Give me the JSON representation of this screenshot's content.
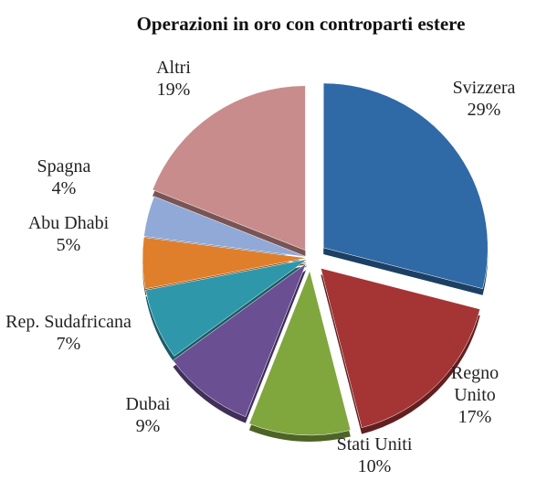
{
  "chart_data": {
    "type": "pie",
    "title": "Operazioni in oro con controparti estere",
    "categories": [
      "Svizzera",
      "Regno Unito",
      "Stati Uniti",
      "Dubai",
      "Rep. Sudafricana",
      "Abu Dhabi",
      "Spagna",
      "Altri"
    ],
    "values": [
      29,
      17,
      10,
      9,
      7,
      5,
      4,
      19
    ],
    "value_labels": [
      "29%",
      "17%",
      "10%",
      "9%",
      "7%",
      "5%",
      "4%",
      "19%"
    ],
    "colors": [
      "#2f69a6",
      "#a53434",
      "#80a63e",
      "#6a4f93",
      "#2f97aa",
      "#df7f2b",
      "#91a9d7",
      "#c98c8c"
    ]
  }
}
